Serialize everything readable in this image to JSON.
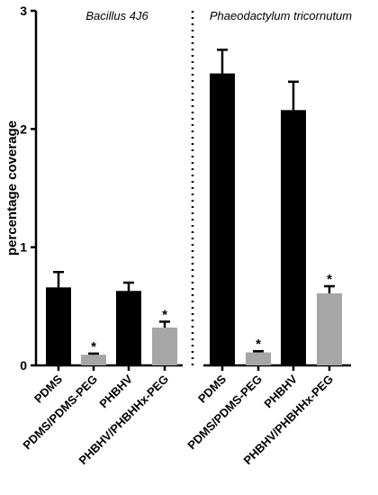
{
  "chart_data": {
    "type": "bar",
    "ylabel": "percentage coverage",
    "xlabel": "",
    "ylim": [
      0,
      3
    ],
    "yticks": [
      "0",
      "1",
      "2",
      "3"
    ],
    "grid": false,
    "panels": [
      {
        "title": "Bacillus 4J6",
        "categories": [
          "PDMS",
          "PDMS/PDMS-PEG",
          "PHBHV",
          "PHBHV/PHBHHx-PEG"
        ],
        "values": [
          0.66,
          0.09,
          0.63,
          0.32
        ],
        "errors": [
          0.13,
          0.01,
          0.07,
          0.05
        ],
        "significance": [
          "",
          "*",
          "",
          "*"
        ],
        "colors": [
          "#000000",
          "#a6a6a6",
          "#000000",
          "#a6a6a6"
        ]
      },
      {
        "title": "Phaeodactylum tricornutum",
        "categories": [
          "PDMS",
          "PDMS/PDMS-PEG",
          "PHBHV",
          "PHBHV/PHBHHx-PEG"
        ],
        "values": [
          2.47,
          0.11,
          2.16,
          0.61
        ],
        "errors": [
          0.2,
          0.01,
          0.24,
          0.06
        ],
        "significance": [
          "",
          "*",
          "",
          "*"
        ],
        "colors": [
          "#000000",
          "#a6a6a6",
          "#000000",
          "#a6a6a6"
        ]
      }
    ]
  }
}
